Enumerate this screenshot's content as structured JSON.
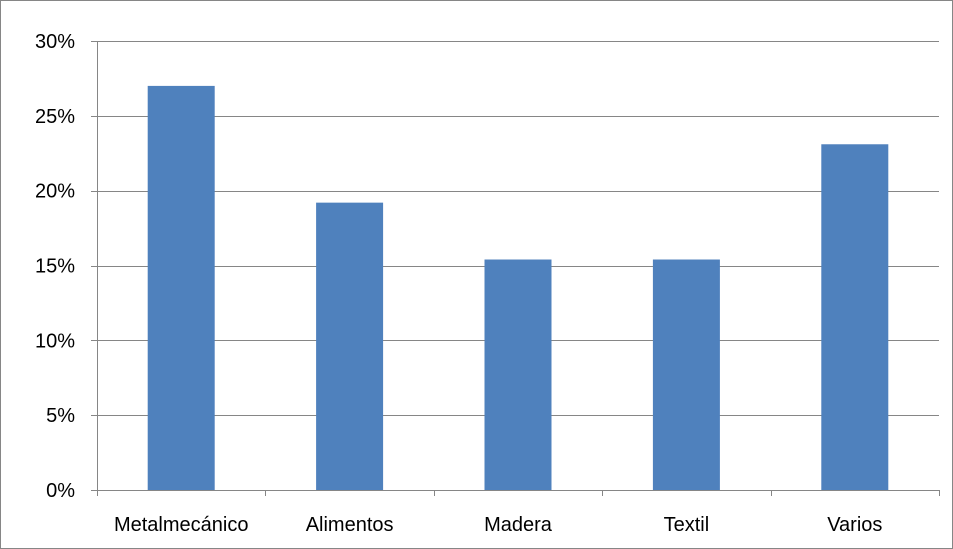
{
  "chart_data": {
    "type": "bar",
    "categories": [
      "Metalmecánico",
      "Alimentos",
      "Madera",
      "Textil",
      "Varios"
    ],
    "values": [
      27,
      19.2,
      15.4,
      15.4,
      23.1
    ],
    "ylim": [
      0,
      30
    ],
    "yticks": [
      0,
      5,
      10,
      15,
      20,
      25,
      30
    ],
    "ytick_labels": [
      "0%",
      "5%",
      "10%",
      "15%",
      "20%",
      "25%",
      "30%"
    ],
    "grid": true,
    "legend": "none",
    "colors": {
      "bar": "#4F81BD",
      "grid": "#868686",
      "axis": "#868686"
    }
  }
}
